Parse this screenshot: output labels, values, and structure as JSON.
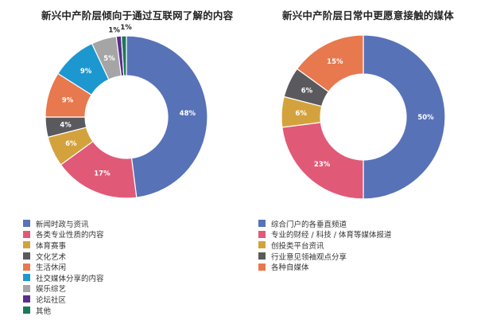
{
  "chart_data": [
    {
      "type": "pie",
      "variant": "donut",
      "title": "新兴中产阶层倾向于通过互联网了解的内容",
      "categories": [
        "新闻时政与资讯",
        "各类专业性质的内容",
        "体育赛事",
        "文化艺术",
        "生活休闲",
        "社交媒体分享的内容",
        "娱乐综艺",
        "论坛社区",
        "其他"
      ],
      "values": [
        48,
        17,
        6,
        4,
        9,
        9,
        5,
        1,
        1
      ],
      "unit": "%",
      "colors": [
        "#5872b8",
        "#e05a78",
        "#d4a23c",
        "#5a5a5e",
        "#e8784d",
        "#1d97cf",
        "#a5a5a5",
        "#5b2d8e",
        "#1a7a5a"
      ],
      "data_labels": [
        "48%",
        "17%",
        "6%",
        "4%",
        "9%",
        "9%",
        "5%",
        "1%",
        "1%"
      ],
      "legend_position": "bottom-left"
    },
    {
      "type": "pie",
      "variant": "donut",
      "title": "新兴中产阶层日常中更愿意接触的媒体",
      "categories": [
        "综合门户的各垂直频道",
        "专业的财经 / 科技 / 体育等媒体报道",
        "创投类平台资讯",
        "行业意见领袖观点分享",
        "各种自媒体"
      ],
      "values": [
        50,
        23,
        6,
        6,
        15
      ],
      "unit": "%",
      "colors": [
        "#5872b8",
        "#e05a78",
        "#d4a23c",
        "#5a5a5e",
        "#e8784d"
      ],
      "data_labels": [
        "50%",
        "23%",
        "6%",
        "6%",
        "15%"
      ],
      "legend_position": "bottom-left"
    }
  ],
  "left": {
    "title": "新兴中产阶层倾向于通过互联网了解的内容",
    "legend": [
      "新闻时政与资讯",
      "各类专业性质的内容",
      "体育赛事",
      "文化艺术",
      "生活休闲",
      "社交媒体分享的内容",
      "娱乐综艺",
      "论坛社区",
      "其他"
    ]
  },
  "right": {
    "title": "新兴中产阶层日常中更愿意接触的媒体",
    "legend": [
      "综合门户的各垂直频道",
      "专业的财经 / 科技 / 体育等媒体报道",
      "创投类平台资讯",
      "行业意见领袖观点分享",
      "各种自媒体"
    ]
  }
}
